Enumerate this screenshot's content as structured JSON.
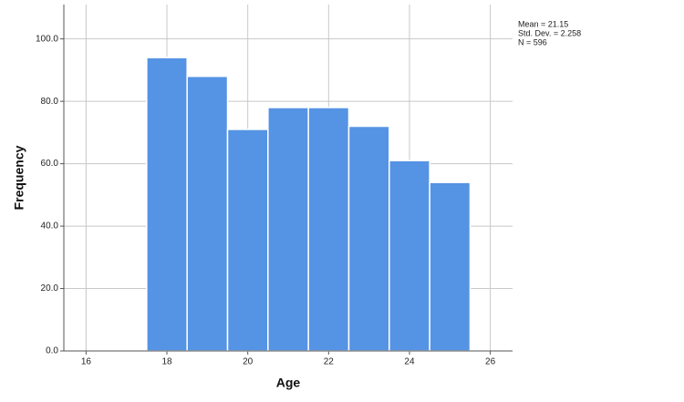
{
  "chart_data": {
    "type": "histogram",
    "x_label": "Age",
    "y_label": "Frequency",
    "bins": [
      17.5,
      18.5,
      19.5,
      20.5,
      21.5,
      22.5,
      23.5,
      24.5,
      25.5
    ],
    "counts": [
      94,
      88,
      71,
      78,
      78,
      72,
      61,
      54
    ],
    "color": "#5593e4",
    "xlim": [
      15.45,
      26.55
    ],
    "xticks": [
      16,
      18,
      20,
      22,
      24,
      26
    ],
    "ylim": [
      0,
      111
    ],
    "yticks": [
      {
        "value": 0,
        "label": "0.0"
      },
      {
        "value": 20,
        "label": "20.0"
      },
      {
        "value": 40,
        "label": "40.0"
      },
      {
        "value": 60,
        "label": "60.0"
      },
      {
        "value": 80,
        "label": "80.0"
      },
      {
        "value": 100,
        "label": "100.0"
      }
    ],
    "grid": true,
    "annotations": [
      "Mean = 21.15",
      "Std. Dev. = 2.258",
      "N = 596"
    ]
  }
}
